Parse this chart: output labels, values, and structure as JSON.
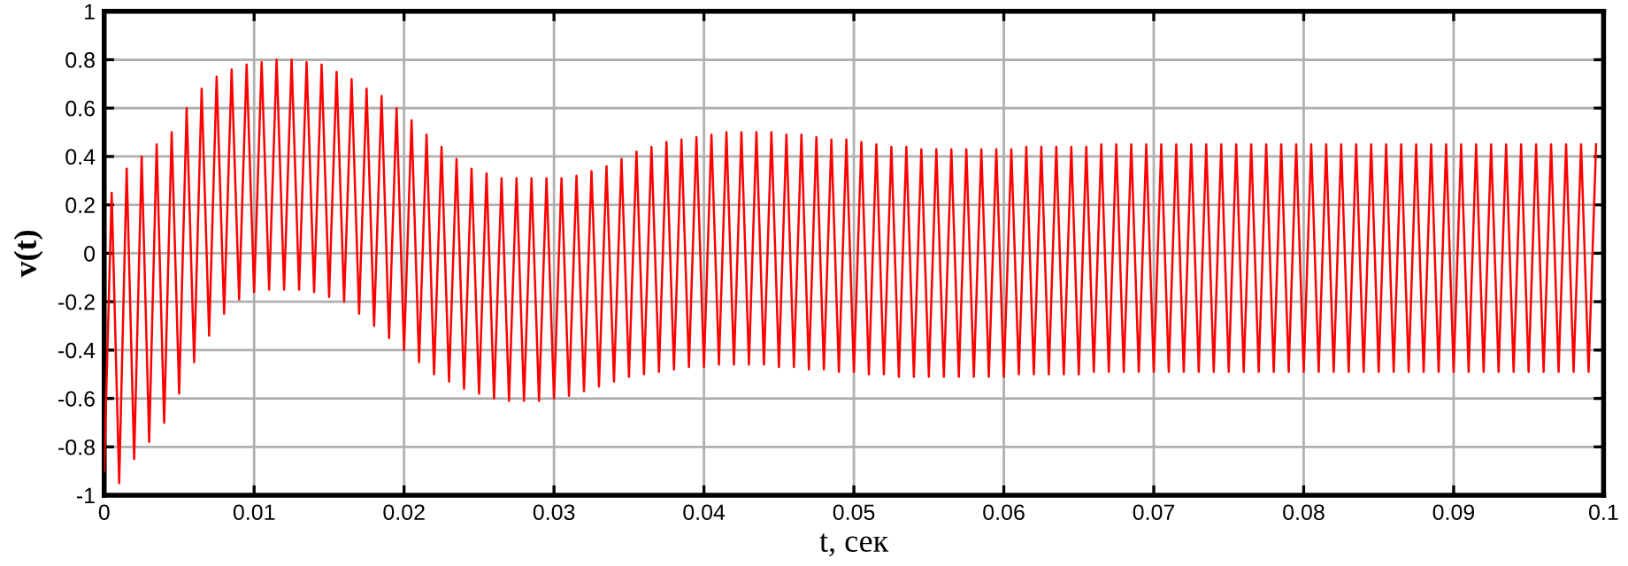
{
  "chart_data": {
    "type": "line",
    "xlabel": "t, сек",
    "ylabel": "v(t)",
    "xlim": [
      0,
      0.1
    ],
    "ylim": [
      -1,
      1
    ],
    "xticks": [
      0,
      0.01,
      0.02,
      0.03,
      0.04,
      0.05,
      0.06,
      0.07,
      0.08,
      0.09,
      0.1
    ],
    "yticks": [
      -1,
      -0.8,
      -0.6,
      -0.4,
      -0.2,
      0,
      0.2,
      0.4,
      0.6,
      0.8,
      1
    ],
    "grid": true,
    "line_style": "solid",
    "series": [
      {
        "color": "#ff0000",
        "x": [
          0,
          0.0005,
          0.001,
          0.0015,
          0.002,
          0.0025,
          0.003,
          0.0035,
          0.004,
          0.0045,
          0.005,
          0.0055,
          0.006,
          0.0065,
          0.007,
          0.0075,
          0.008,
          0.0085,
          0.009,
          0.0095,
          0.01,
          0.0105,
          0.011,
          0.0115,
          0.012,
          0.0125,
          0.013,
          0.0135,
          0.014,
          0.0145,
          0.015,
          0.0155,
          0.016,
          0.0165,
          0.017,
          0.0175,
          0.018,
          0.0185,
          0.019,
          0.0195,
          0.02,
          0.0205,
          0.021,
          0.0215,
          0.022,
          0.0225,
          0.023,
          0.0235,
          0.024,
          0.0245,
          0.025,
          0.0255,
          0.026,
          0.0265,
          0.027,
          0.0275,
          0.028,
          0.0285,
          0.029,
          0.0295,
          0.03,
          0.0305,
          0.031,
          0.0315,
          0.032,
          0.0325,
          0.033,
          0.0335,
          0.034,
          0.0345,
          0.035,
          0.0355,
          0.036,
          0.0365,
          0.037,
          0.0375,
          0.038,
          0.0385,
          0.039,
          0.0395,
          0.04,
          0.0405,
          0.041,
          0.0415,
          0.042,
          0.0425,
          0.043,
          0.0435,
          0.044,
          0.0445,
          0.045,
          0.0455,
          0.046,
          0.0465,
          0.047,
          0.0475,
          0.048,
          0.0485,
          0.049,
          0.0495,
          0.05,
          0.0505,
          0.051,
          0.0515,
          0.052,
          0.0525,
          0.053,
          0.0535,
          0.054,
          0.0545,
          0.055,
          0.0555,
          0.056,
          0.0565,
          0.057,
          0.0575,
          0.058,
          0.0585,
          0.059,
          0.0595,
          0.06,
          0.0605,
          0.061,
          0.0615,
          0.062,
          0.0625,
          0.063,
          0.0635,
          0.064,
          0.0645,
          0.065,
          0.0655,
          0.066,
          0.0665,
          0.067,
          0.0675,
          0.068,
          0.0685,
          0.069,
          0.0695,
          0.07,
          0.0705,
          0.071,
          0.0715,
          0.072,
          0.0725,
          0.073,
          0.0735,
          0.074,
          0.0745,
          0.075,
          0.0755,
          0.076,
          0.0765,
          0.077,
          0.0775,
          0.078,
          0.0785,
          0.079,
          0.0795,
          0.08,
          0.0805,
          0.081,
          0.0815,
          0.082,
          0.0825,
          0.083,
          0.0835,
          0.084,
          0.0845,
          0.085,
          0.0855,
          0.086,
          0.0865,
          0.087,
          0.0875,
          0.088,
          0.0885,
          0.089,
          0.0895,
          0.09,
          0.0905,
          0.091,
          0.0915,
          0.092,
          0.0925,
          0.093,
          0.0935,
          0.094,
          0.0945,
          0.095,
          0.0955,
          0.096,
          0.0965,
          0.097,
          0.0975,
          0.098,
          0.0985,
          0.099,
          0.0995
        ],
        "values": [
          -0.9,
          0.25,
          -0.95,
          0.35,
          -0.85,
          0.4,
          -0.78,
          0.45,
          -0.7,
          0.5,
          -0.58,
          0.6,
          -0.45,
          0.68,
          -0.34,
          0.73,
          -0.25,
          0.76,
          -0.19,
          0.78,
          -0.16,
          0.79,
          -0.15,
          0.8,
          -0.15,
          0.8,
          -0.15,
          0.79,
          -0.16,
          0.78,
          -0.18,
          0.75,
          -0.2,
          0.72,
          -0.25,
          0.68,
          -0.3,
          0.65,
          -0.35,
          0.6,
          -0.4,
          0.55,
          -0.45,
          0.49,
          -0.5,
          0.44,
          -0.53,
          0.39,
          -0.56,
          0.35,
          -0.58,
          0.33,
          -0.6,
          0.31,
          -0.61,
          0.31,
          -0.61,
          0.31,
          -0.61,
          0.31,
          -0.6,
          0.31,
          -0.59,
          0.32,
          -0.57,
          0.34,
          -0.55,
          0.36,
          -0.53,
          0.39,
          -0.51,
          0.42,
          -0.5,
          0.44,
          -0.49,
          0.46,
          -0.48,
          0.47,
          -0.47,
          0.48,
          -0.47,
          0.49,
          -0.46,
          0.5,
          -0.46,
          0.5,
          -0.46,
          0.5,
          -0.46,
          0.5,
          -0.47,
          0.49,
          -0.47,
          0.49,
          -0.48,
          0.48,
          -0.48,
          0.47,
          -0.49,
          0.47,
          -0.49,
          0.46,
          -0.5,
          0.45,
          -0.5,
          0.44,
          -0.51,
          0.44,
          -0.51,
          0.43,
          -0.51,
          0.43,
          -0.51,
          0.43,
          -0.51,
          0.43,
          -0.51,
          0.43,
          -0.51,
          0.43,
          -0.51,
          0.43,
          -0.5,
          0.44,
          -0.5,
          0.44,
          -0.5,
          0.44,
          -0.5,
          0.44,
          -0.5,
          0.44,
          -0.49,
          0.45,
          -0.49,
          0.45,
          -0.49,
          0.45,
          -0.49,
          0.45,
          -0.49,
          0.45,
          -0.49,
          0.45,
          -0.49,
          0.45,
          -0.49,
          0.45,
          -0.49,
          0.45,
          -0.49,
          0.45,
          -0.49,
          0.45,
          -0.49,
          0.45,
          -0.49,
          0.45,
          -0.49,
          0.45,
          -0.49,
          0.45,
          -0.49,
          0.45,
          -0.49,
          0.45,
          -0.49,
          0.45,
          -0.49,
          0.45,
          -0.49,
          0.45,
          -0.49,
          0.45,
          -0.49,
          0.45,
          -0.49,
          0.45,
          -0.49,
          0.45,
          -0.49,
          0.45,
          -0.49,
          0.45,
          -0.49,
          0.45,
          -0.49,
          0.45,
          -0.49,
          0.45,
          -0.49,
          0.45,
          -0.49,
          0.45,
          -0.49,
          0.45,
          -0.49,
          0.45,
          -0.49,
          0.45
        ]
      }
    ]
  }
}
